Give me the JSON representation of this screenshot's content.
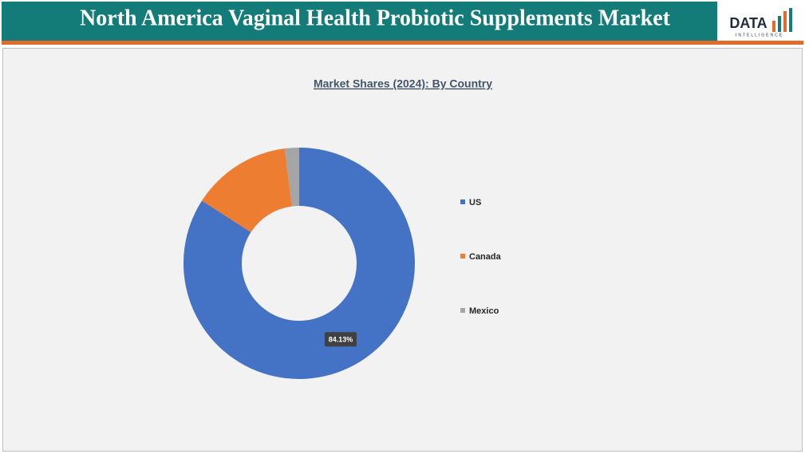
{
  "header": {
    "title": "North America Vaginal Health Probiotic Supplements Market",
    "logo_text": "DATA",
    "logo_subtext": "INTELLIGENCE"
  },
  "chart_data": {
    "type": "donut",
    "title": "Market Shares (2024): By Country",
    "categories": [
      "US",
      "Canada",
      "Mexico"
    ],
    "values": [
      84.13,
      13.9,
      2.0
    ],
    "value_labels": [
      "84.13%",
      null,
      null
    ],
    "colors": [
      "#4472c4",
      "#ed7d31",
      "#a5a5a5"
    ],
    "legend": "right"
  }
}
